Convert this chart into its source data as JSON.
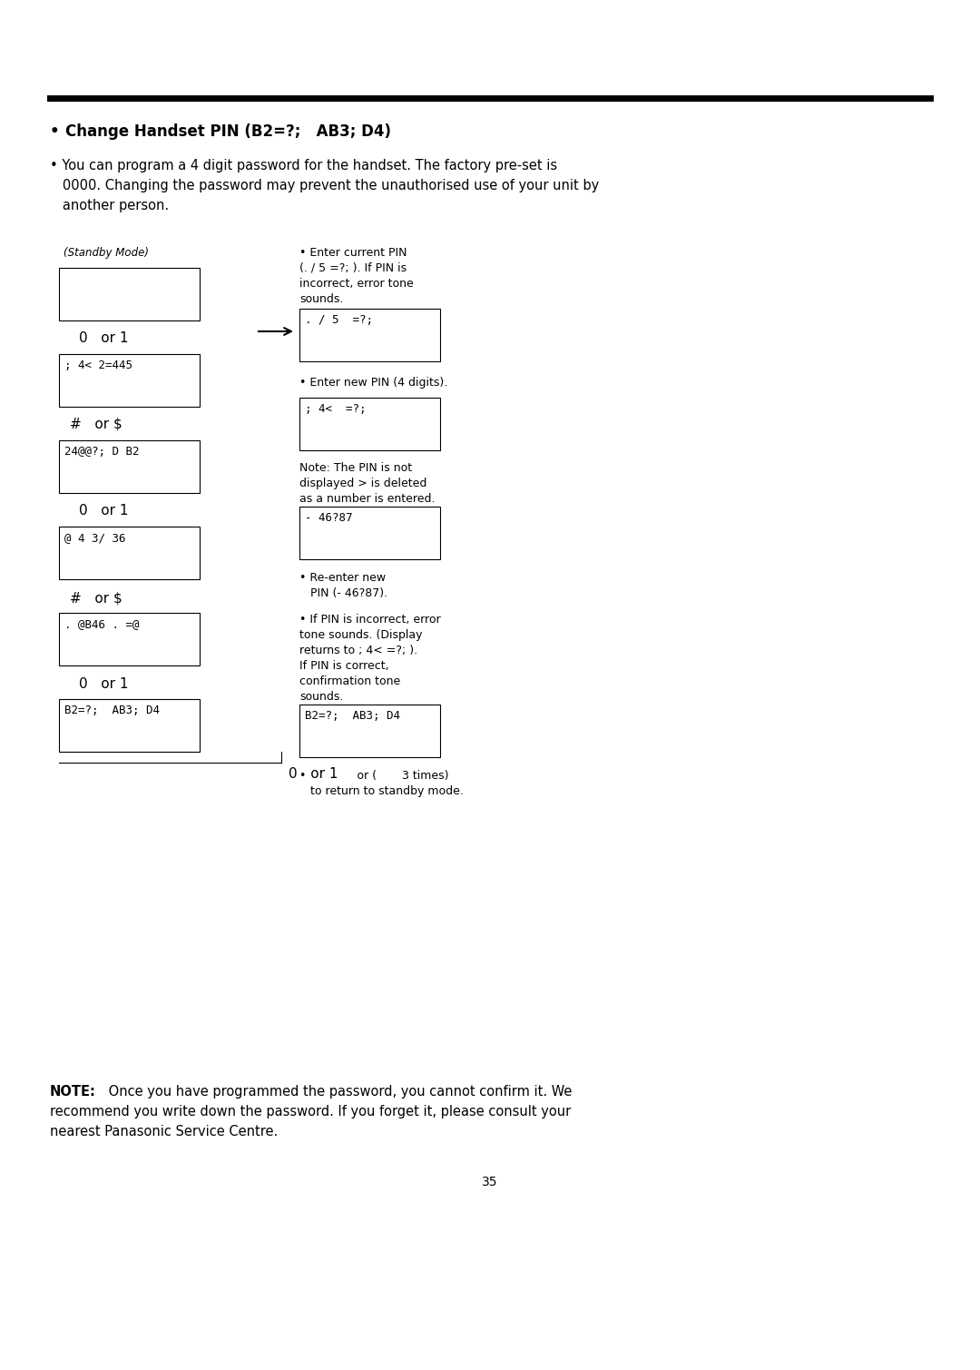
{
  "bg_color": "#ffffff",
  "page_number": "35",
  "left_col": {
    "standby_label": "(Standby Mode)",
    "box1_text": "",
    "label1": "0   or 1",
    "box2_text": "; 4< 2=445",
    "label2": "#   or $",
    "box3_text": "24@@?; D B2",
    "label3": "0   or 1",
    "box4_text": "@ 4 3/ 36",
    "label4": "#   or $",
    "box5_text": ". @B46 . =@",
    "label5": "0   or 1",
    "box6_text": "B2=?;  AB3; D4",
    "label6": "0   or 1"
  },
  "right_col": {
    "note1_line1": "• Enter current PIN",
    "note1_line2": "(. / 5 =?; ). If PIN is",
    "note1_line3": "incorrect, error tone",
    "note1_line4": "sounds.",
    "box1_text": ". / 5  =?;",
    "note2": "• Enter new PIN (4 digits).",
    "box2_text": "; 4<  =?;",
    "note3_line1": "Note: The PIN is not",
    "note3_line2": "displayed > is deleted",
    "note3_line3": "as a number is entered.",
    "box3_text": "- 46?87",
    "note4_line1": "• Re-enter new",
    "note4_line2": "   PIN (- 46?87).",
    "note5_line1": "• If PIN is incorrect, error",
    "note5_line2": "tone sounds. (Display",
    "note5_line3": "returns to ; 4< =?; ).",
    "note5_line4": "If PIN is correct,",
    "note5_line5": "confirmation tone",
    "note5_line6": "sounds.",
    "box4_text": "B2=?;  AB3; D4",
    "note6_line1": "•              or (       3 times)",
    "note6_line2": "   to return to standby mode."
  },
  "title": "Change Handset PIN (B2=?;   AB3; D4)",
  "para_line1": "• You can program a 4 digit password for the handset. The factory pre-set is",
  "para_line2": "   0000. Changing the password may prevent the unauthorised use of your unit by",
  "para_line3": "   another person.",
  "note_bold": "NOTE:",
  "note_rest_line1": " Once you have programmed the password, you cannot confirm it. We",
  "note_rest_line2": "recommend you write down the password. If you forget it, please consult your",
  "note_rest_line3": "nearest Panasonic Service Centre."
}
